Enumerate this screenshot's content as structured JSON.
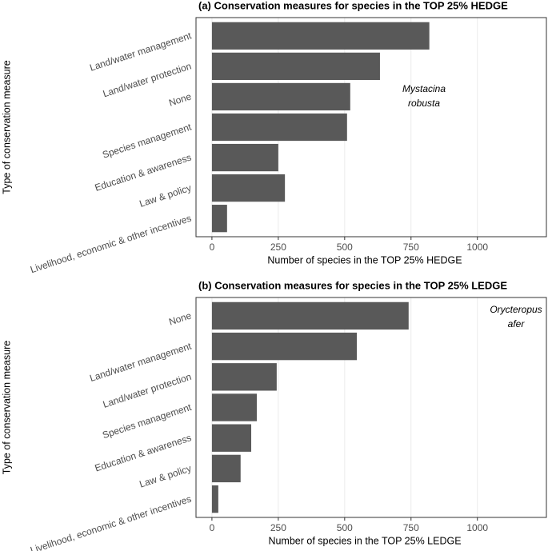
{
  "chart_data": [
    {
      "type": "bar",
      "orientation": "horizontal",
      "title": "(a) Conservation measures for species in the TOP 25% HEDGE",
      "xlabel": "Number of species in the TOP 25% HEDGE",
      "ylabel": "Type of conservation measure",
      "categories": [
        "Land/water management",
        "Land/water protection",
        "None",
        "Species management",
        "Education & awareness",
        "Law & policy",
        "Livelihood, economic & other incentives"
      ],
      "values": [
        819,
        633,
        521,
        509,
        250,
        275,
        57
      ],
      "color": "#595959",
      "xlim": [
        -60,
        1260
      ],
      "xticks": [
        0,
        250,
        500,
        750,
        1000
      ],
      "grid": true,
      "annotation": [
        "Mystacina",
        "robusta"
      ]
    },
    {
      "type": "bar",
      "orientation": "horizontal",
      "title": "(b) Conservation measures for species in the TOP 25% LEDGE",
      "xlabel": "Number of species in the TOP 25% LEDGE",
      "ylabel": "Type of conservation measure",
      "categories": [
        "None",
        "Land/water management",
        "Land/water protection",
        "Species management",
        "Education & awareness",
        "Law & policy",
        "Livelihood, economic & other incentives"
      ],
      "values": [
        741,
        546,
        244,
        169,
        148,
        108,
        24
      ],
      "color": "#595959",
      "xlim": [
        -60,
        1260
      ],
      "xticks": [
        0,
        250,
        500,
        750,
        1000
      ],
      "grid": true,
      "annotation": [
        "Orycteropus",
        "afer"
      ]
    }
  ]
}
